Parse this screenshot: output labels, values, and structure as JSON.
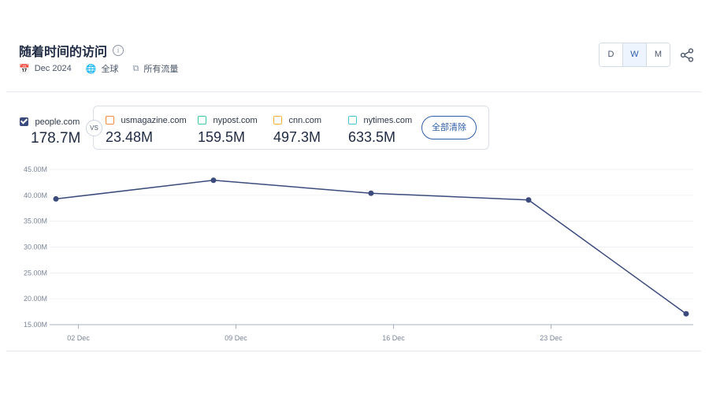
{
  "header": {
    "title": "随着时间的访问",
    "date": "Dec 2024",
    "region": "全球",
    "traffic": "所有流量"
  },
  "period_buttons": [
    "D",
    "W",
    "M"
  ],
  "active_period": "W",
  "main_site": {
    "name": "people.com",
    "value": "178.7M"
  },
  "vs_label": "VS",
  "competitors": [
    {
      "name": "usmagazine.com",
      "value": "23.48M",
      "color": "#f08a3c"
    },
    {
      "name": "nypost.com",
      "value": "159.5M",
      "color": "#3cc9a0"
    },
    {
      "name": "cnn.com",
      "value": "497.3M",
      "color": "#f2b632"
    },
    {
      "name": "nytimes.com",
      "value": "633.5M",
      "color": "#45c4d6"
    }
  ],
  "clear_all_label": "全部清除",
  "colors": {
    "line": "#3b4b7c",
    "accent": "#2f5da8"
  },
  "chart_data": {
    "type": "line",
    "title": "",
    "xlabel": "",
    "ylabel": "",
    "ylim": [
      15,
      45
    ],
    "yticks": [
      15,
      20,
      25,
      30,
      35,
      40,
      45
    ],
    "ytick_labels": [
      "15.00M",
      "20.00M",
      "25.00M",
      "30.00M",
      "35.00M",
      "40.00M",
      "45.00M"
    ],
    "xticks": [
      "02 Dec",
      "09 Dec",
      "16 Dec",
      "23 Dec"
    ],
    "x": [
      "2024-12-01",
      "2024-12-08",
      "2024-12-15",
      "2024-12-22",
      "2024-12-29"
    ],
    "series": [
      {
        "name": "people.com",
        "values": [
          39.3,
          42.9,
          40.4,
          39.1,
          17.1
        ]
      }
    ],
    "grid": true
  }
}
